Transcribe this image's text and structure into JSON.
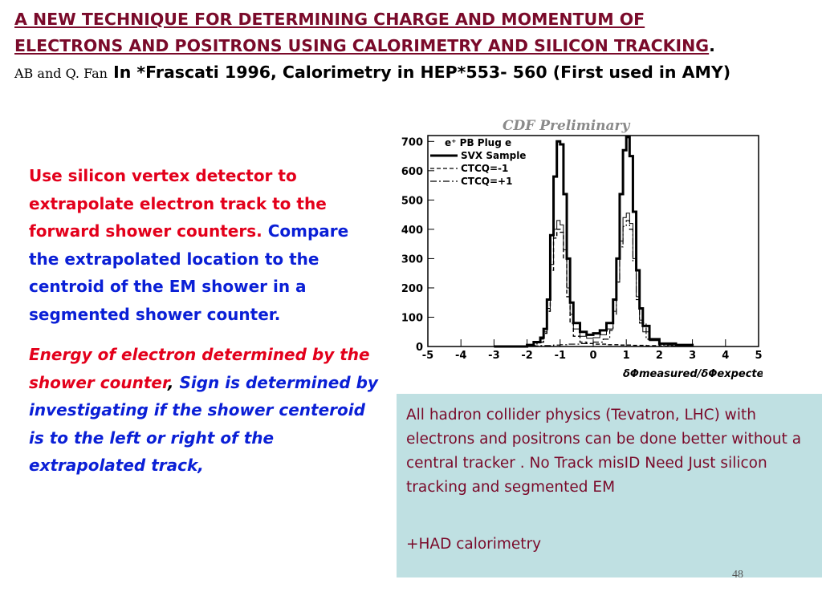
{
  "title": {
    "underlined": "A NEW TECHNIQUE FOR DETERMINING CHARGE AND MOMENTUM OF ELECTRONS AND POSITRONS USING CALORIMETRY AND SILICON TRACKING",
    "authors": "AB and Q. Fan",
    "citation": "In *Frascati 1996, Calorimetry in HEP*553- 560 (First used in AMY)"
  },
  "left_text": {
    "red_1": "Use silicon vertex detector to extrapolate electron track to the forward shower counters.",
    "blue_1": "Compare the extrapolated location to the centroid of the EM shower in a segmented shower counter.",
    "red_2": "Energy of electron determined by the shower counter",
    "comma": ",",
    "blue_2": "Sign is determined by investigating if the shower centeroid is to the left or right of the extrapolated track,"
  },
  "box": {
    "line1": "All  hadron collider physics (Tevatron, LHC) with electrons and positrons can be done better without a central tracker . No Track misID  Need Just silicon tracking and segmented  EM",
    "line2": "+HAD calorimetry"
  },
  "page_number": "48",
  "chart_data": {
    "type": "line",
    "title": "CDF Preliminary",
    "xlabel": "δΦmeasured/δΦexpected",
    "legend_header": "e⁺ PB  Plug e",
    "xlim": [
      -5,
      5
    ],
    "ylim": [
      0,
      720
    ],
    "x_ticks": [
      "-5",
      "-4",
      "-3",
      "-2",
      "-1",
      "0",
      "1",
      "2",
      "3",
      "4",
      "5"
    ],
    "y_ticks": [
      "0",
      "100",
      "200",
      "300",
      "400",
      "500",
      "600",
      "700"
    ],
    "series": [
      {
        "name": "SVX Sample",
        "style": "solid-thick",
        "x": [
          -3.0,
          -2.0,
          -1.8,
          -1.6,
          -1.5,
          -1.4,
          -1.3,
          -1.2,
          -1.1,
          -1.0,
          -0.9,
          -0.8,
          -0.7,
          -0.6,
          -0.4,
          -0.2,
          0.0,
          0.2,
          0.4,
          0.6,
          0.7,
          0.8,
          0.9,
          1.0,
          1.1,
          1.2,
          1.3,
          1.4,
          1.5,
          1.7,
          2.0,
          2.5,
          3.0
        ],
        "y": [
          0,
          5,
          15,
          30,
          60,
          160,
          380,
          580,
          700,
          690,
          520,
          300,
          150,
          80,
          50,
          40,
          45,
          55,
          80,
          160,
          300,
          520,
          670,
          715,
          650,
          460,
          260,
          130,
          70,
          25,
          10,
          5,
          0
        ]
      },
      {
        "name": "",
        "style": "solid-thin",
        "x": [
          -3.0,
          -2.0,
          -1.8,
          -1.6,
          -1.5,
          -1.4,
          -1.3,
          -1.2,
          -1.1,
          -1.0,
          -0.9,
          -0.8,
          -0.7,
          -0.6,
          -0.4,
          -0.2,
          0.0,
          0.2,
          0.4,
          0.6,
          0.7,
          0.8,
          0.9,
          1.0,
          1.1,
          1.2,
          1.3,
          1.4,
          1.5,
          1.7,
          2.0,
          2.5,
          3.0
        ],
        "y": [
          0,
          5,
          12,
          25,
          50,
          130,
          280,
          400,
          430,
          415,
          330,
          200,
          110,
          60,
          35,
          28,
          30,
          40,
          60,
          120,
          220,
          360,
          440,
          455,
          420,
          300,
          170,
          90,
          50,
          20,
          8,
          3,
          0
        ]
      },
      {
        "name": "CTCQ=-1",
        "style": "dashed",
        "x": [
          -3.0,
          -2.0,
          -1.7,
          -1.5,
          -1.4,
          -1.3,
          -1.2,
          -1.1,
          -1.0,
          -0.9,
          -0.8,
          -0.7,
          -0.6,
          -0.4,
          -0.2,
          0.0,
          0.4,
          0.8,
          1.0,
          1.2,
          1.6,
          2.0,
          3.0
        ],
        "y": [
          0,
          3,
          15,
          45,
          120,
          260,
          370,
          400,
          390,
          300,
          170,
          80,
          35,
          15,
          10,
          8,
          6,
          5,
          5,
          4,
          3,
          2,
          0
        ]
      },
      {
        "name": "CTCQ=+1",
        "style": "dash-dot",
        "x": [
          -3.0,
          -2.0,
          -1.6,
          -1.2,
          -1.0,
          -0.8,
          -0.4,
          0.0,
          0.3,
          0.5,
          0.6,
          0.7,
          0.8,
          0.9,
          1.0,
          1.1,
          1.2,
          1.3,
          1.4,
          1.6,
          2.0,
          2.5,
          3.0
        ],
        "y": [
          0,
          2,
          3,
          5,
          6,
          8,
          10,
          15,
          25,
          55,
          110,
          220,
          340,
          410,
          430,
          400,
          290,
          160,
          80,
          25,
          5,
          2,
          0
        ]
      }
    ]
  }
}
